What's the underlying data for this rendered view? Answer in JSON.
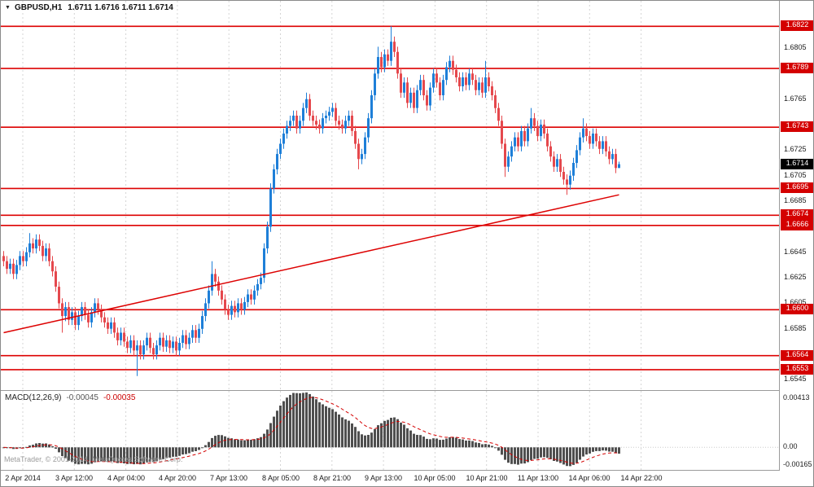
{
  "header": {
    "symbol": "GBPUSD,H1",
    "ohlc": "1.6711 1.6716 1.6711 1.6714"
  },
  "price_axis": {
    "ticks": [
      1.6805,
      1.6765,
      1.6725,
      1.6705,
      1.6685,
      1.6645,
      1.6625,
      1.6605,
      1.6585,
      1.6545
    ]
  },
  "time_axis": {
    "labels": [
      "2 Apr 2014",
      "3 Apr 12:00",
      "4 Apr 04:00",
      "4 Apr 20:00",
      "7 Apr 13:00",
      "8 Apr 05:00",
      "8 Apr 21:00",
      "9 Apr 13:00",
      "10 Apr 05:00",
      "10 Apr 21:00",
      "11 Apr 13:00",
      "14 Apr 06:00",
      "14 Apr 22:00"
    ]
  },
  "macd": {
    "label": "MACD(12,26,9)",
    "value_main": "-0.00045",
    "value_signal": "-0.00035",
    "axis_labels": [
      "0.00413",
      "0.00",
      "-0.00165"
    ]
  },
  "watermark": "MetaTrader, © 2001-2014, MetaQuotes Software Corp.",
  "colors": {
    "bull": "#1e7fd8",
    "bear": "#e5484d",
    "level_line": "#dd0202",
    "badge_red": "#d40000",
    "badge_black": "#000000",
    "trend_line": "#dd0202",
    "macd_hist": "#4f4f4f",
    "macd_signal": "#d40000",
    "grid": "#d4d4d4"
  },
  "chart_data": {
    "type": "candlestick",
    "symbol": "GBPUSD",
    "timeframe": "H1",
    "ylim": [
      1.6537,
      1.6842
    ],
    "current_price": 1.6714,
    "horizontal_levels": [
      1.6822,
      1.6789,
      1.6743,
      1.6695,
      1.6674,
      1.6666,
      1.66,
      1.6564,
      1.6553
    ],
    "trendline": {
      "start_index": 0,
      "start_price": 1.6582,
      "end_index": 189,
      "end_price": 1.669
    },
    "macd_panel": {
      "indicator": "MACD",
      "params": [
        12,
        26,
        9
      ],
      "ylim": [
        -0.00165,
        0.00413
      ],
      "last_main": -0.00045,
      "last_signal": -0.00035
    },
    "candles": [
      [
        1.6642,
        1.6646,
        1.6634,
        1.6638
      ],
      [
        1.6638,
        1.6642,
        1.6628,
        1.6632
      ],
      [
        1.6632,
        1.664,
        1.6628,
        1.6636
      ],
      [
        1.6636,
        1.664,
        1.6624,
        1.6628
      ],
      [
        1.6628,
        1.6639,
        1.6624,
        1.6635
      ],
      [
        1.6635,
        1.6646,
        1.6631,
        1.6642
      ],
      [
        1.6642,
        1.6646,
        1.6634,
        1.6638
      ],
      [
        1.6638,
        1.6649,
        1.6634,
        1.6645
      ],
      [
        1.6645,
        1.666,
        1.6641,
        1.6652
      ],
      [
        1.6652,
        1.6656,
        1.6644,
        1.6648
      ],
      [
        1.6648,
        1.6659,
        1.6644,
        1.6655
      ],
      [
        1.6655,
        1.6659,
        1.6646,
        1.665
      ],
      [
        1.665,
        1.6654,
        1.6638,
        1.6642
      ],
      [
        1.6642,
        1.6652,
        1.6638,
        1.6648
      ],
      [
        1.6648,
        1.6652,
        1.6634,
        1.6638
      ],
      [
        1.6638,
        1.6642,
        1.6626,
        1.663
      ],
      [
        1.663,
        1.6634,
        1.6614,
        1.6618
      ],
      [
        1.6618,
        1.6622,
        1.6601,
        1.6605
      ],
      [
        1.6605,
        1.6609,
        1.6582,
        1.6595
      ],
      [
        1.6595,
        1.6606,
        1.6591,
        1.6602
      ],
      [
        1.6602,
        1.6606,
        1.6588,
        1.6592
      ],
      [
        1.6592,
        1.6602,
        1.6588,
        1.6598
      ],
      [
        1.6598,
        1.6602,
        1.6584,
        1.6588
      ],
      [
        1.6588,
        1.6599,
        1.6584,
        1.6595
      ],
      [
        1.6595,
        1.6606,
        1.6591,
        1.6602
      ],
      [
        1.6602,
        1.6606,
        1.6592,
        1.6596
      ],
      [
        1.6596,
        1.66,
        1.6586,
        1.659
      ],
      [
        1.659,
        1.6602,
        1.6586,
        1.6598
      ],
      [
        1.6598,
        1.6609,
        1.6594,
        1.6605
      ],
      [
        1.6605,
        1.6609,
        1.6596,
        1.66
      ],
      [
        1.66,
        1.6604,
        1.659,
        1.6594
      ],
      [
        1.6594,
        1.6598,
        1.6586,
        1.659
      ],
      [
        1.659,
        1.6594,
        1.6581,
        1.6585
      ],
      [
        1.6585,
        1.6594,
        1.6581,
        1.659
      ],
      [
        1.659,
        1.6594,
        1.6578,
        1.6582
      ],
      [
        1.6582,
        1.6586,
        1.6572,
        1.6576
      ],
      [
        1.6576,
        1.6586,
        1.6572,
        1.6582
      ],
      [
        1.6582,
        1.6586,
        1.6571,
        1.6575
      ],
      [
        1.6575,
        1.6579,
        1.6566,
        1.657
      ],
      [
        1.657,
        1.658,
        1.6566,
        1.6576
      ],
      [
        1.6576,
        1.658,
        1.6564,
        1.6568
      ],
      [
        1.6568,
        1.6576,
        1.6548,
        1.6572
      ],
      [
        1.6572,
        1.6576,
        1.6561,
        1.6565
      ],
      [
        1.6565,
        1.6576,
        1.6561,
        1.6572
      ],
      [
        1.6572,
        1.6582,
        1.6568,
        1.6578
      ],
      [
        1.6578,
        1.6582,
        1.6566,
        1.657
      ],
      [
        1.657,
        1.6574,
        1.6561,
        1.6565
      ],
      [
        1.6565,
        1.6576,
        1.6561,
        1.6572
      ],
      [
        1.6572,
        1.6582,
        1.6568,
        1.6578
      ],
      [
        1.6578,
        1.6582,
        1.6567,
        1.6571
      ],
      [
        1.6571,
        1.658,
        1.6567,
        1.6576
      ],
      [
        1.6576,
        1.658,
        1.6566,
        1.657
      ],
      [
        1.657,
        1.6579,
        1.6566,
        1.6575
      ],
      [
        1.6575,
        1.6579,
        1.6564,
        1.6568
      ],
      [
        1.6568,
        1.6578,
        1.6564,
        1.6574
      ],
      [
        1.6574,
        1.6584,
        1.657,
        1.658
      ],
      [
        1.658,
        1.6584,
        1.6569,
        1.6573
      ],
      [
        1.6573,
        1.6582,
        1.6569,
        1.6578
      ],
      [
        1.6578,
        1.6588,
        1.6574,
        1.6584
      ],
      [
        1.6584,
        1.6588,
        1.6574,
        1.6578
      ],
      [
        1.6578,
        1.6589,
        1.6574,
        1.6585
      ],
      [
        1.6585,
        1.6599,
        1.6581,
        1.6595
      ],
      [
        1.6595,
        1.6609,
        1.6591,
        1.6605
      ],
      [
        1.6605,
        1.6619,
        1.6601,
        1.6615
      ],
      [
        1.6615,
        1.6638,
        1.6611,
        1.6628
      ],
      [
        1.6628,
        1.6632,
        1.6618,
        1.6622
      ],
      [
        1.6622,
        1.6626,
        1.6611,
        1.6615
      ],
      [
        1.6615,
        1.6619,
        1.6604,
        1.6608
      ],
      [
        1.6608,
        1.6612,
        1.6596,
        1.66
      ],
      [
        1.66,
        1.6604,
        1.6592,
        1.6596
      ],
      [
        1.6596,
        1.6607,
        1.6592,
        1.6603
      ],
      [
        1.6603,
        1.6607,
        1.6594,
        1.6598
      ],
      [
        1.6598,
        1.6609,
        1.6594,
        1.6605
      ],
      [
        1.6605,
        1.6609,
        1.6596,
        1.66
      ],
      [
        1.66,
        1.661,
        1.6596,
        1.6606
      ],
      [
        1.6606,
        1.6616,
        1.6602,
        1.6612
      ],
      [
        1.6612,
        1.6616,
        1.6604,
        1.6608
      ],
      [
        1.6608,
        1.6619,
        1.6604,
        1.6615
      ],
      [
        1.6615,
        1.6624,
        1.6611,
        1.662
      ],
      [
        1.662,
        1.6629,
        1.6616,
        1.6625
      ],
      [
        1.6625,
        1.6652,
        1.6621,
        1.6648
      ],
      [
        1.6648,
        1.6669,
        1.6644,
        1.6665
      ],
      [
        1.6665,
        1.6699,
        1.6661,
        1.6695
      ],
      [
        1.6695,
        1.6714,
        1.6691,
        1.671
      ],
      [
        1.671,
        1.6726,
        1.6706,
        1.6722
      ],
      [
        1.6722,
        1.6734,
        1.6718,
        1.673
      ],
      [
        1.673,
        1.6742,
        1.6726,
        1.6738
      ],
      [
        1.6738,
        1.6748,
        1.6734,
        1.6744
      ],
      [
        1.6744,
        1.6752,
        1.674,
        1.6748
      ],
      [
        1.6748,
        1.6756,
        1.6744,
        1.6752
      ],
      [
        1.6752,
        1.6756,
        1.6738,
        1.6742
      ],
      [
        1.6742,
        1.6752,
        1.6738,
        1.6748
      ],
      [
        1.6748,
        1.6762,
        1.6744,
        1.6758
      ],
      [
        1.6758,
        1.677,
        1.6754,
        1.6765
      ],
      [
        1.6765,
        1.6769,
        1.6748,
        1.6752
      ],
      [
        1.6752,
        1.6756,
        1.6744,
        1.6748
      ],
      [
        1.6748,
        1.6752,
        1.6741,
        1.6745
      ],
      [
        1.6745,
        1.6749,
        1.6738,
        1.6742
      ],
      [
        1.6742,
        1.6754,
        1.6738,
        1.675
      ],
      [
        1.675,
        1.6756,
        1.6746,
        1.6752
      ],
      [
        1.6752,
        1.6759,
        1.6748,
        1.6755
      ],
      [
        1.6755,
        1.6762,
        1.6751,
        1.6758
      ],
      [
        1.6758,
        1.6762,
        1.6744,
        1.6748
      ],
      [
        1.6748,
        1.6752,
        1.6741,
        1.6745
      ],
      [
        1.6745,
        1.6749,
        1.6738,
        1.6742
      ],
      [
        1.6742,
        1.6752,
        1.6738,
        1.6748
      ],
      [
        1.6748,
        1.6756,
        1.6744,
        1.6752
      ],
      [
        1.6752,
        1.6756,
        1.6736,
        1.674
      ],
      [
        1.674,
        1.6744,
        1.6726,
        1.673
      ],
      [
        1.673,
        1.6734,
        1.671,
        1.6718
      ],
      [
        1.6718,
        1.6726,
        1.6714,
        1.6722
      ],
      [
        1.6722,
        1.6739,
        1.6718,
        1.6735
      ],
      [
        1.6735,
        1.6754,
        1.6731,
        1.675
      ],
      [
        1.675,
        1.6772,
        1.6746,
        1.6768
      ],
      [
        1.6768,
        1.6789,
        1.6764,
        1.6785
      ],
      [
        1.6785,
        1.6806,
        1.6781,
        1.6798
      ],
      [
        1.6798,
        1.6802,
        1.6786,
        1.679
      ],
      [
        1.679,
        1.6804,
        1.6786,
        1.68
      ],
      [
        1.68,
        1.6804,
        1.6791,
        1.6795
      ],
      [
        1.6795,
        1.6822,
        1.6791,
        1.681
      ],
      [
        1.681,
        1.6814,
        1.6798,
        1.6802
      ],
      [
        1.6802,
        1.6806,
        1.6781,
        1.6785
      ],
      [
        1.6785,
        1.6789,
        1.6766,
        1.677
      ],
      [
        1.677,
        1.6782,
        1.6766,
        1.6778
      ],
      [
        1.6778,
        1.6782,
        1.6758,
        1.6762
      ],
      [
        1.6762,
        1.6774,
        1.6758,
        1.677
      ],
      [
        1.677,
        1.6774,
        1.6754,
        1.6758
      ],
      [
        1.6758,
        1.6776,
        1.6754,
        1.6772
      ],
      [
        1.6772,
        1.6784,
        1.6768,
        1.678
      ],
      [
        1.678,
        1.6784,
        1.6764,
        1.6768
      ],
      [
        1.6768,
        1.6772,
        1.6756,
        1.676
      ],
      [
        1.676,
        1.6778,
        1.6756,
        1.6774
      ],
      [
        1.6774,
        1.6789,
        1.677,
        1.6785
      ],
      [
        1.6785,
        1.6789,
        1.6774,
        1.6778
      ],
      [
        1.6778,
        1.6782,
        1.6764,
        1.6768
      ],
      [
        1.6768,
        1.6784,
        1.6764,
        1.678
      ],
      [
        1.678,
        1.6794,
        1.6776,
        1.679
      ],
      [
        1.679,
        1.6799,
        1.6786,
        1.6795
      ],
      [
        1.6795,
        1.6799,
        1.6784,
        1.6788
      ],
      [
        1.6788,
        1.6792,
        1.6778,
        1.6782
      ],
      [
        1.6782,
        1.6786,
        1.6771,
        1.6775
      ],
      [
        1.6775,
        1.6786,
        1.6771,
        1.6782
      ],
      [
        1.6782,
        1.6786,
        1.6772,
        1.6776
      ],
      [
        1.6776,
        1.6789,
        1.6772,
        1.6785
      ],
      [
        1.6785,
        1.6789,
        1.6776,
        1.678
      ],
      [
        1.678,
        1.6784,
        1.6768,
        1.6772
      ],
      [
        1.6772,
        1.6782,
        1.6768,
        1.6778
      ],
      [
        1.6778,
        1.6782,
        1.6766,
        1.677
      ],
      [
        1.677,
        1.6795,
        1.6766,
        1.6782
      ],
      [
        1.6782,
        1.6786,
        1.6771,
        1.6775
      ],
      [
        1.6775,
        1.6779,
        1.6764,
        1.6768
      ],
      [
        1.6768,
        1.6772,
        1.6754,
        1.6758
      ],
      [
        1.6758,
        1.6762,
        1.6744,
        1.6748
      ],
      [
        1.6748,
        1.6752,
        1.6726,
        1.673
      ],
      [
        1.673,
        1.6734,
        1.6704,
        1.6712
      ],
      [
        1.6712,
        1.6724,
        1.6708,
        1.672
      ],
      [
        1.672,
        1.6732,
        1.6716,
        1.6728
      ],
      [
        1.6728,
        1.6739,
        1.6724,
        1.6735
      ],
      [
        1.6735,
        1.6739,
        1.6724,
        1.6728
      ],
      [
        1.6728,
        1.6744,
        1.6724,
        1.674
      ],
      [
        1.674,
        1.6744,
        1.6728,
        1.6732
      ],
      [
        1.6732,
        1.6746,
        1.6728,
        1.6742
      ],
      [
        1.6742,
        1.6758,
        1.6738,
        1.675
      ],
      [
        1.675,
        1.6754,
        1.674,
        1.6744
      ],
      [
        1.6744,
        1.6748,
        1.6732,
        1.6736
      ],
      [
        1.6736,
        1.6749,
        1.6732,
        1.6745
      ],
      [
        1.6745,
        1.6749,
        1.6734,
        1.6738
      ],
      [
        1.6738,
        1.6742,
        1.6724,
        1.6728
      ],
      [
        1.6728,
        1.6732,
        1.6716,
        1.672
      ],
      [
        1.672,
        1.6724,
        1.6708,
        1.6712
      ],
      [
        1.6712,
        1.6722,
        1.6708,
        1.6718
      ],
      [
        1.6718,
        1.6722,
        1.6704,
        1.6708
      ],
      [
        1.6708,
        1.6712,
        1.6698,
        1.6702
      ],
      [
        1.6702,
        1.6706,
        1.669,
        1.6698
      ],
      [
        1.6698,
        1.6709,
        1.6694,
        1.6705
      ],
      [
        1.6705,
        1.6719,
        1.6701,
        1.6715
      ],
      [
        1.6715,
        1.6729,
        1.6711,
        1.6725
      ],
      [
        1.6725,
        1.6739,
        1.6721,
        1.6735
      ],
      [
        1.6735,
        1.675,
        1.6731,
        1.6742
      ],
      [
        1.6742,
        1.6746,
        1.6732,
        1.6736
      ],
      [
        1.6736,
        1.674,
        1.6726,
        1.673
      ],
      [
        1.673,
        1.6742,
        1.6726,
        1.6738
      ],
      [
        1.6738,
        1.6742,
        1.6728,
        1.6732
      ],
      [
        1.6732,
        1.6736,
        1.6722,
        1.6726
      ],
      [
        1.6726,
        1.6736,
        1.6722,
        1.6732
      ],
      [
        1.6732,
        1.6736,
        1.672,
        1.6724
      ],
      [
        1.6724,
        1.6728,
        1.6714,
        1.6718
      ],
      [
        1.6718,
        1.6726,
        1.6714,
        1.6722
      ],
      [
        1.6722,
        1.6726,
        1.6707,
        1.6711
      ],
      [
        1.6711,
        1.6716,
        1.6711,
        1.6714
      ]
    ]
  }
}
